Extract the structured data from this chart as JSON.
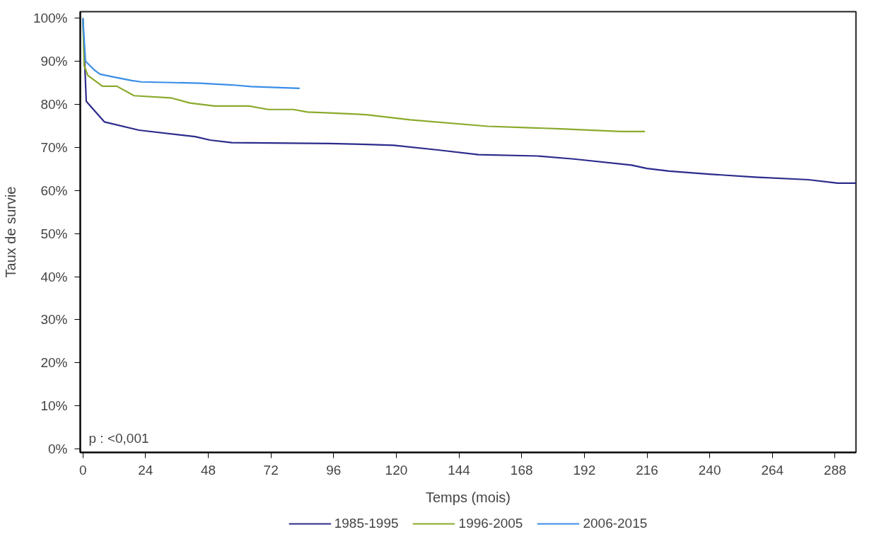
{
  "chart_data": {
    "type": "line",
    "xlabel": "Temps (mois)",
    "ylabel": "Taux de survie",
    "xlim": [
      -1,
      296
    ],
    "ylim": [
      -0.8,
      101.5
    ],
    "xticks": [
      0,
      24,
      48,
      72,
      96,
      120,
      144,
      168,
      192,
      216,
      240,
      264,
      288
    ],
    "yticks": [
      {
        "value": 0,
        "label": "0%"
      },
      {
        "value": 10,
        "label": "10%"
      },
      {
        "value": 20,
        "label": "20%"
      },
      {
        "value": 30,
        "label": "30%"
      },
      {
        "value": 40,
        "label": "40%"
      },
      {
        "value": 50,
        "label": "50%"
      },
      {
        "value": 60,
        "label": "60%"
      },
      {
        "value": 70,
        "label": "70%"
      },
      {
        "value": 80,
        "label": "80%"
      },
      {
        "value": 90,
        "label": "90%"
      },
      {
        "value": 100,
        "label": "100%"
      }
    ],
    "grid": false,
    "legend": "bottom",
    "line_style": "solid",
    "annotations": [
      "p : <0,001"
    ],
    "series": [
      {
        "name": "1985-1995",
        "color": "#2b2b8c",
        "x": [
          0,
          1.3,
          8.3,
          21.5,
          43,
          48.7,
          57,
          94.5,
          108.5,
          119,
          136,
          151.5,
          174,
          188,
          210,
          216,
          224.5,
          239.6,
          257.3,
          277.8,
          289,
          296
        ],
        "values": [
          100,
          80.7,
          75.9,
          74,
          72.5,
          71.7,
          71.1,
          70.9,
          70.7,
          70.5,
          69.4,
          68.3,
          68,
          67.3,
          65.9,
          65.1,
          64.5,
          63.8,
          63.1,
          62.5,
          61.7,
          61.7
        ]
      },
      {
        "name": "1996-2005",
        "color": "#8aaa2c",
        "x": [
          0,
          0.5,
          1.9,
          7.5,
          13,
          19.6,
          33.6,
          41,
          50.5,
          63.6,
          71,
          80.5,
          86,
          94.5,
          108.5,
          125.4,
          155,
          169.5,
          183,
          206,
          215.2
        ],
        "values": [
          100,
          89,
          86.7,
          84.2,
          84.2,
          82,
          81.5,
          80.3,
          79.6,
          79.6,
          78.8,
          78.8,
          78.2,
          78,
          77.6,
          76.4,
          74.9,
          74.6,
          74.3,
          73.7,
          73.7
        ]
      },
      {
        "name": "2006-2015",
        "color": "#3a8ee8",
        "x": [
          0,
          1,
          4.7,
          6.6,
          12.2,
          18.7,
          22.4,
          44.8,
          57,
          64.5,
          83
        ],
        "values": [
          100,
          90,
          87.8,
          87,
          86.3,
          85.5,
          85.2,
          84.9,
          84.5,
          84.1,
          83.7
        ]
      }
    ]
  }
}
